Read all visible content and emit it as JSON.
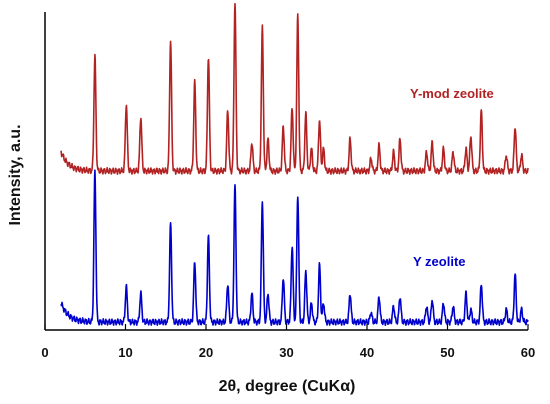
{
  "chart_data": {
    "type": "line",
    "xlabel": "2θ, degree (CuKα)",
    "ylabel": "Intensity, a.u.",
    "xlim": [
      0,
      60
    ],
    "xticks": [
      0,
      10,
      20,
      30,
      40,
      50,
      60
    ],
    "grid": false,
    "series": [
      {
        "name": "Y-mod zeolite",
        "color": "#b22222",
        "baseline": 0.5,
        "peaks": [
          [
            6.2,
            0.36
          ],
          [
            10.1,
            0.21
          ],
          [
            11.9,
            0.17
          ],
          [
            15.6,
            0.41
          ],
          [
            18.6,
            0.28
          ],
          [
            20.3,
            0.36
          ],
          [
            22.7,
            0.19
          ],
          [
            23.6,
            0.53
          ],
          [
            25.7,
            0.09
          ],
          [
            27.0,
            0.45
          ],
          [
            27.7,
            0.1
          ],
          [
            29.6,
            0.14
          ],
          [
            30.7,
            0.2
          ],
          [
            31.4,
            0.49
          ],
          [
            32.4,
            0.18
          ],
          [
            33.1,
            0.07
          ],
          [
            34.1,
            0.16
          ],
          [
            34.6,
            0.07
          ],
          [
            37.9,
            0.1
          ],
          [
            40.5,
            0.04
          ],
          [
            41.5,
            0.08
          ],
          [
            43.3,
            0.06
          ],
          [
            44.1,
            0.1
          ],
          [
            47.4,
            0.06
          ],
          [
            48.1,
            0.09
          ],
          [
            49.5,
            0.07
          ],
          [
            50.7,
            0.06
          ],
          [
            52.3,
            0.07
          ],
          [
            52.9,
            0.11
          ],
          [
            54.2,
            0.19
          ],
          [
            57.3,
            0.05
          ],
          [
            58.4,
            0.14
          ],
          [
            59.2,
            0.05
          ]
        ]
      },
      {
        "name": "Y zeolite",
        "color": "#0000cc",
        "baseline": 0.025,
        "peaks": [
          [
            6.2,
            0.47
          ],
          [
            10.1,
            0.11
          ],
          [
            11.9,
            0.09
          ],
          [
            15.6,
            0.31
          ],
          [
            18.6,
            0.19
          ],
          [
            20.3,
            0.27
          ],
          [
            22.7,
            0.12
          ],
          [
            23.6,
            0.43
          ],
          [
            25.7,
            0.09
          ],
          [
            27.0,
            0.38
          ],
          [
            27.7,
            0.09
          ],
          [
            29.6,
            0.14
          ],
          [
            30.7,
            0.24
          ],
          [
            31.4,
            0.4
          ],
          [
            32.4,
            0.16
          ],
          [
            33.1,
            0.06
          ],
          [
            34.1,
            0.18
          ],
          [
            34.6,
            0.06
          ],
          [
            37.9,
            0.09
          ],
          [
            40.5,
            0.03
          ],
          [
            41.5,
            0.08
          ],
          [
            43.3,
            0.05
          ],
          [
            44.1,
            0.08
          ],
          [
            47.4,
            0.05
          ],
          [
            48.1,
            0.07
          ],
          [
            49.5,
            0.06
          ],
          [
            50.7,
            0.05
          ],
          [
            52.3,
            0.09
          ],
          [
            52.9,
            0.04
          ],
          [
            54.2,
            0.12
          ],
          [
            57.3,
            0.04
          ],
          [
            58.4,
            0.15
          ],
          [
            59.2,
            0.04
          ]
        ]
      }
    ]
  }
}
